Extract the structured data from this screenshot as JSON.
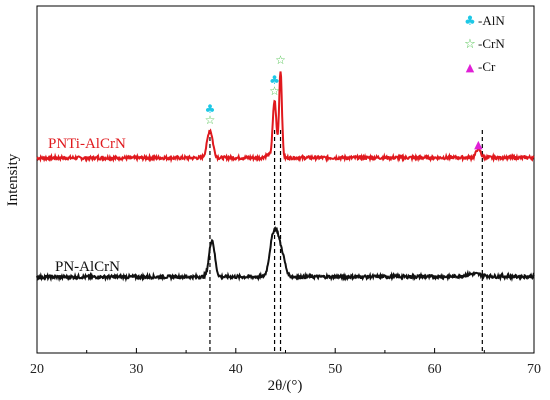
{
  "chart_data": {
    "type": "line",
    "xlabel": "2θ/(°)",
    "ylabel": "Intensity",
    "xlim": [
      20,
      70
    ],
    "xticks": [
      20,
      30,
      40,
      50,
      60,
      70
    ],
    "y_ticks_shown": false,
    "series": [
      {
        "name": "PNTi-AlCrN",
        "color": "#e0191e",
        "baseline": 1.0,
        "peaks": [
          {
            "x": 37.4,
            "height": 0.3,
            "width": 0.28
          },
          {
            "x": 43.2,
            "height": 0.03,
            "width": 0.25
          },
          {
            "x": 43.9,
            "height": 0.62,
            "width": 0.18
          },
          {
            "x": 44.5,
            "height": 0.95,
            "width": 0.14
          },
          {
            "x": 64.4,
            "height": 0.1,
            "width": 0.22
          }
        ]
      },
      {
        "name": "PN-AlCrN",
        "color": "#111111",
        "baseline": 0.0,
        "peaks": [
          {
            "x": 37.6,
            "height": 0.4,
            "width": 0.28
          },
          {
            "x": 43.6,
            "height": 0.28,
            "width": 0.3
          },
          {
            "x": 44.1,
            "height": 0.42,
            "width": 0.32
          },
          {
            "x": 44.7,
            "height": 0.2,
            "width": 0.3
          },
          {
            "x": 64.0,
            "height": 0.03,
            "width": 0.8
          }
        ]
      }
    ],
    "reference_lines_x": [
      37.4,
      43.9,
      44.5,
      64.8
    ],
    "legend": {
      "position": "top-right",
      "entries": [
        {
          "symbol": "♣",
          "label": "-AlN",
          "color": "#1ec8e6"
        },
        {
          "symbol": "☆",
          "label": "-CrN",
          "color": "#4cc24c"
        },
        {
          "symbol": "▲",
          "label": "-Cr",
          "color": "#e01fd6"
        }
      ]
    },
    "peak_markers": [
      {
        "x": 37.4,
        "phases": [
          "AlN",
          "CrN"
        ]
      },
      {
        "x": 43.9,
        "phases": [
          "AlN",
          "CrN"
        ]
      },
      {
        "x": 44.5,
        "phases": [
          "CrN"
        ]
      },
      {
        "x": 64.4,
        "phases": [
          "Cr"
        ]
      }
    ]
  }
}
